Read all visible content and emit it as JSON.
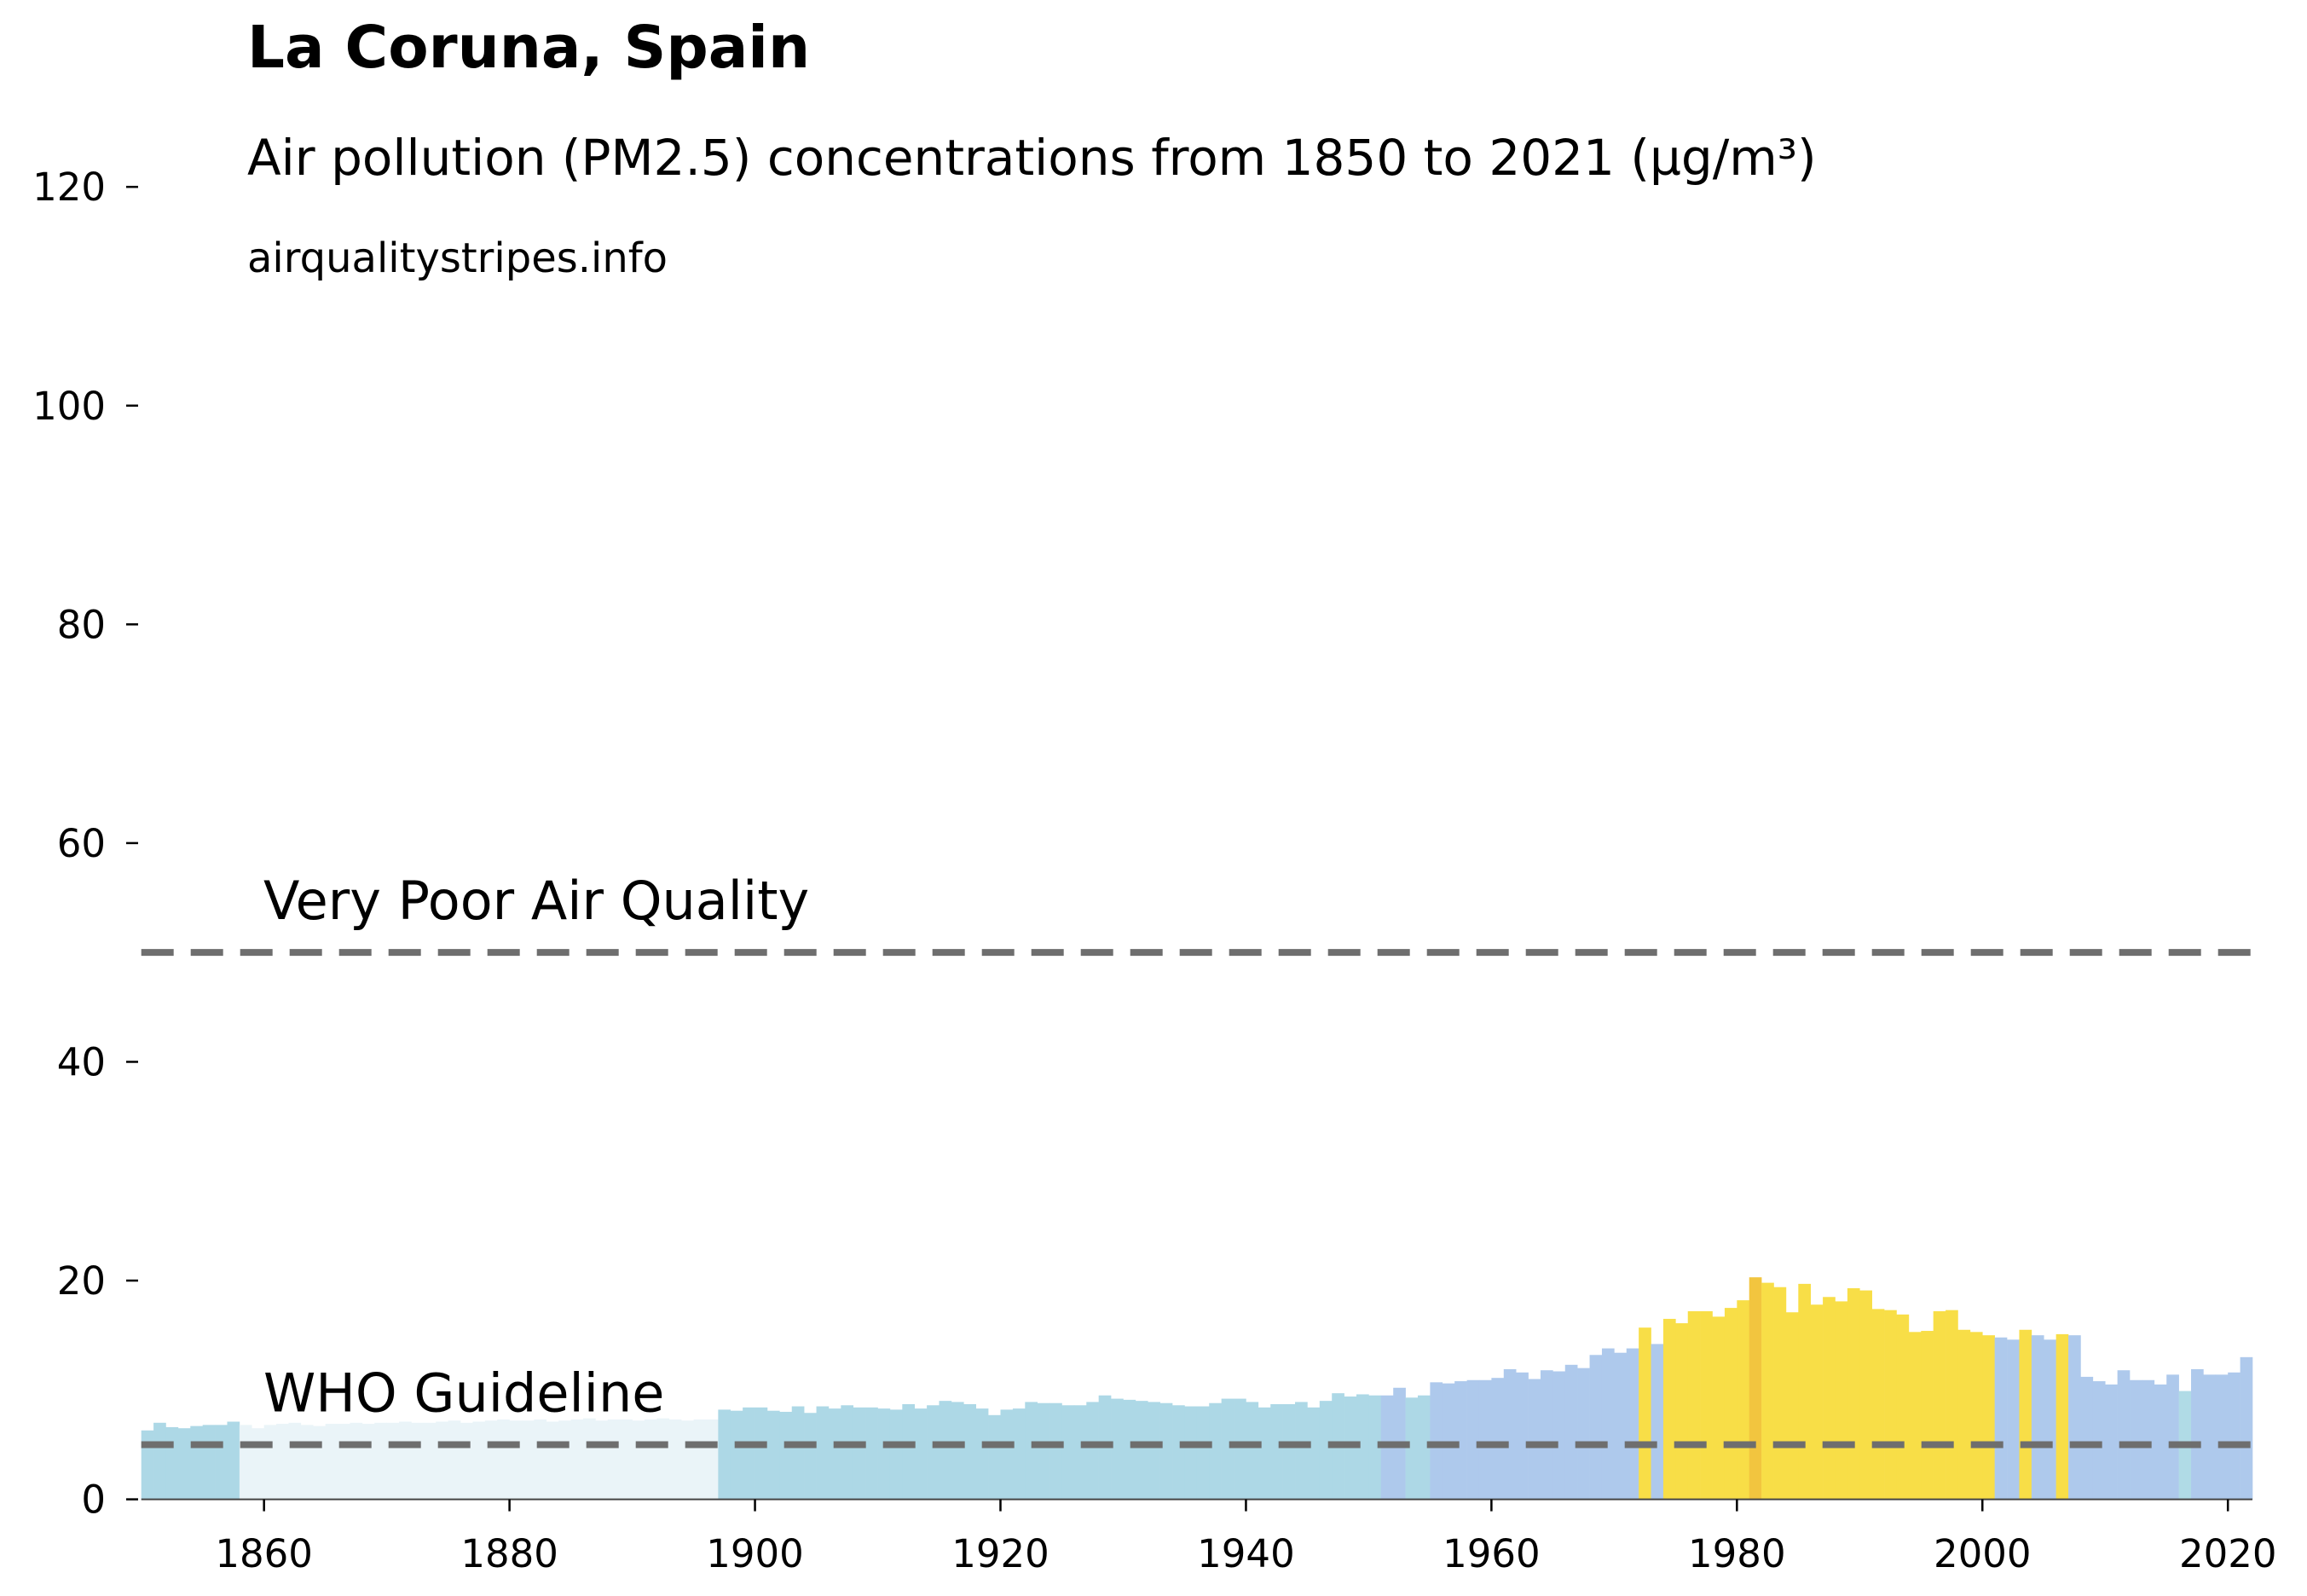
{
  "chart_data": {
    "type": "bar",
    "title": "La Coruna, Spain",
    "subtitle": "Air pollution (PM2.5) concentrations from 1850 to 2021 (µg/m³)",
    "source": "airqualitystripes.info",
    "x": [
      1850,
      1851,
      1852,
      1853,
      1854,
      1855,
      1856,
      1857,
      1858,
      1859,
      1860,
      1861,
      1862,
      1863,
      1864,
      1865,
      1866,
      1867,
      1868,
      1869,
      1870,
      1871,
      1872,
      1873,
      1874,
      1875,
      1876,
      1877,
      1878,
      1879,
      1880,
      1881,
      1882,
      1883,
      1884,
      1885,
      1886,
      1887,
      1888,
      1889,
      1890,
      1891,
      1892,
      1893,
      1894,
      1895,
      1896,
      1897,
      1898,
      1899,
      1900,
      1901,
      1902,
      1903,
      1904,
      1905,
      1906,
      1907,
      1908,
      1909,
      1910,
      1911,
      1912,
      1913,
      1914,
      1915,
      1916,
      1917,
      1918,
      1919,
      1920,
      1921,
      1922,
      1923,
      1924,
      1925,
      1926,
      1927,
      1928,
      1929,
      1930,
      1931,
      1932,
      1933,
      1934,
      1935,
      1936,
      1937,
      1938,
      1939,
      1940,
      1941,
      1942,
      1943,
      1944,
      1945,
      1946,
      1947,
      1948,
      1949,
      1950,
      1951,
      1952,
      1953,
      1954,
      1955,
      1956,
      1957,
      1958,
      1959,
      1960,
      1961,
      1962,
      1963,
      1964,
      1965,
      1966,
      1967,
      1968,
      1969,
      1970,
      1971,
      1972,
      1973,
      1974,
      1975,
      1976,
      1977,
      1978,
      1979,
      1980,
      1981,
      1982,
      1983,
      1984,
      1985,
      1986,
      1987,
      1988,
      1989,
      1990,
      1991,
      1992,
      1993,
      1994,
      1995,
      1996,
      1997,
      1998,
      1999,
      2000,
      2001,
      2002,
      2003,
      2004,
      2005,
      2006,
      2007,
      2008,
      2009,
      2010,
      2011,
      2012,
      2013,
      2014,
      2015,
      2016,
      2017,
      2018,
      2019,
      2020,
      2021
    ],
    "values": [
      6.3,
      7.0,
      6.6,
      6.5,
      6.7,
      6.8,
      6.8,
      7.1,
      6.8,
      6.5,
      6.8,
      6.9,
      7.0,
      6.8,
      6.7,
      6.9,
      6.9,
      7.0,
      6.9,
      7.0,
      7.0,
      7.1,
      7.0,
      7.0,
      7.1,
      7.2,
      7.0,
      7.1,
      7.2,
      7.3,
      7.2,
      7.2,
      7.3,
      7.1,
      7.2,
      7.3,
      7.4,
      7.2,
      7.3,
      7.3,
      7.2,
      7.3,
      7.4,
      7.3,
      7.2,
      7.3,
      7.3,
      8.2,
      8.1,
      8.4,
      8.4,
      8.1,
      8.0,
      8.5,
      7.9,
      8.5,
      8.3,
      8.6,
      8.4,
      8.4,
      8.3,
      8.2,
      8.7,
      8.3,
      8.6,
      9.0,
      8.9,
      8.7,
      8.3,
      7.7,
      8.2,
      8.3,
      8.9,
      8.8,
      8.8,
      8.6,
      8.6,
      8.9,
      9.5,
      9.2,
      9.1,
      9.0,
      8.9,
      8.8,
      8.6,
      8.5,
      8.5,
      8.8,
      9.2,
      9.2,
      8.9,
      8.4,
      8.7,
      8.7,
      8.9,
      8.4,
      9.0,
      9.7,
      9.4,
      9.6,
      9.5,
      9.5,
      10.2,
      9.3,
      9.5,
      10.7,
      10.6,
      10.8,
      10.9,
      10.9,
      11.1,
      11.9,
      11.6,
      11.0,
      11.8,
      11.7,
      12.3,
      12.0,
      13.2,
      13.8,
      13.4,
      13.8,
      15.7,
      14.2,
      16.5,
      16.1,
      17.2,
      17.2,
      16.7,
      17.5,
      18.2,
      20.3,
      19.8,
      19.4,
      17.1,
      19.7,
      17.8,
      18.5,
      18.1,
      19.3,
      19.1,
      17.4,
      17.3,
      16.9,
      15.3,
      15.4,
      17.2,
      17.3,
      15.5,
      15.3,
      15.0,
      14.8,
      14.6,
      15.5,
      15.0,
      14.6,
      15.1,
      15.0,
      11.2,
      10.8,
      10.5,
      11.8,
      10.9,
      10.9,
      10.5,
      11.4,
      9.9,
      11.9,
      11.4,
      11.4,
      11.6,
      13.0
    ],
    "colors": [
      "#add8e6",
      "#add8e6",
      "#add8e6",
      "#add8e6",
      "#add8e6",
      "#add8e6",
      "#add8e6",
      "#add8e6",
      "#eaf4f8",
      "#eaf4f8",
      "#eaf4f8",
      "#eaf4f8",
      "#eaf4f8",
      "#eaf4f8",
      "#eaf4f8",
      "#eaf4f8",
      "#eaf4f8",
      "#eaf4f8",
      "#eaf4f8",
      "#eaf4f8",
      "#eaf4f8",
      "#eaf4f8",
      "#eaf4f8",
      "#eaf4f8",
      "#eaf4f8",
      "#eaf4f8",
      "#eaf4f8",
      "#eaf4f8",
      "#eaf4f8",
      "#eaf4f8",
      "#eaf4f8",
      "#eaf4f8",
      "#eaf4f8",
      "#eaf4f8",
      "#eaf4f8",
      "#eaf4f8",
      "#eaf4f8",
      "#eaf4f8",
      "#eaf4f8",
      "#eaf4f8",
      "#eaf4f8",
      "#eaf4f8",
      "#eaf4f8",
      "#eaf4f8",
      "#eaf4f8",
      "#eaf4f8",
      "#eaf4f8",
      "#add8e6",
      "#add8e6",
      "#add8e6",
      "#add8e6",
      "#add8e6",
      "#add8e6",
      "#add8e6",
      "#add8e6",
      "#add8e6",
      "#add8e6",
      "#add8e6",
      "#add8e6",
      "#add8e6",
      "#add8e6",
      "#add8e6",
      "#add8e6",
      "#add8e6",
      "#add8e6",
      "#add8e6",
      "#add8e6",
      "#add8e6",
      "#add8e6",
      "#add8e6",
      "#add8e6",
      "#add8e6",
      "#add8e6",
      "#add8e6",
      "#add8e6",
      "#add8e6",
      "#add8e6",
      "#add8e6",
      "#add8e6",
      "#add8e6",
      "#add8e6",
      "#add8e6",
      "#add8e6",
      "#add8e6",
      "#add8e6",
      "#add8e6",
      "#add8e6",
      "#add8e6",
      "#add8e6",
      "#add8e6",
      "#add8e6",
      "#add8e6",
      "#add8e6",
      "#add8e6",
      "#add8e6",
      "#add8e6",
      "#add8e6",
      "#add8e6",
      "#add8e6",
      "#add8e6",
      "#add8e6",
      "#aec9ec",
      "#aec9ec",
      "#add8e6",
      "#add8e6",
      "#aec9ec",
      "#aec9ec",
      "#aec9ec",
      "#aec9ec",
      "#aec9ec",
      "#aec9ec",
      "#aec9ec",
      "#aec9ec",
      "#aec9ec",
      "#aec9ec",
      "#aec9ec",
      "#aec9ec",
      "#aec9ec",
      "#aec9ec",
      "#aec9ec",
      "#aec9ec",
      "#aec9ec",
      "#f8de47",
      "#aec9ec",
      "#f8de47",
      "#f8de47",
      "#f8de47",
      "#f8de47",
      "#f8de47",
      "#f8de47",
      "#f8de47",
      "#f2c53f",
      "#f8de47",
      "#f8de47",
      "#f8de47",
      "#f8de47",
      "#f8de47",
      "#f8de47",
      "#f8de47",
      "#f8de47",
      "#f8de47",
      "#f8de47",
      "#f8de47",
      "#f8de47",
      "#f8de47",
      "#f8de47",
      "#f8de47",
      "#f8de47",
      "#f8de47",
      "#f8de47",
      "#f8de47",
      "#aec9ec",
      "#aec9ec",
      "#f8de47",
      "#aec9ec",
      "#aec9ec",
      "#f8de47",
      "#aec9ec",
      "#aec9ec",
      "#aec9ec",
      "#aec9ec",
      "#aec9ec",
      "#aec9ec",
      "#aec9ec",
      "#aec9ec",
      "#aec9ec",
      "#b0dbe6",
      "#aec9ec",
      "#aec9ec",
      "#aec9ec",
      "#aec9ec",
      "#aec9ec"
    ],
    "xlim": [
      1850,
      2022
    ],
    "ylim": [
      0,
      120
    ],
    "xticks": [
      1860,
      1880,
      1900,
      1920,
      1940,
      1960,
      1980,
      2000,
      2020
    ],
    "yticks": [
      0,
      20,
      40,
      60,
      80,
      100,
      120
    ],
    "hlines": [
      {
        "value": 50,
        "label": "Very Poor Air Quality"
      },
      {
        "value": 5,
        "label": "WHO Guideline"
      }
    ],
    "hline_color": "#6e6e6e"
  }
}
